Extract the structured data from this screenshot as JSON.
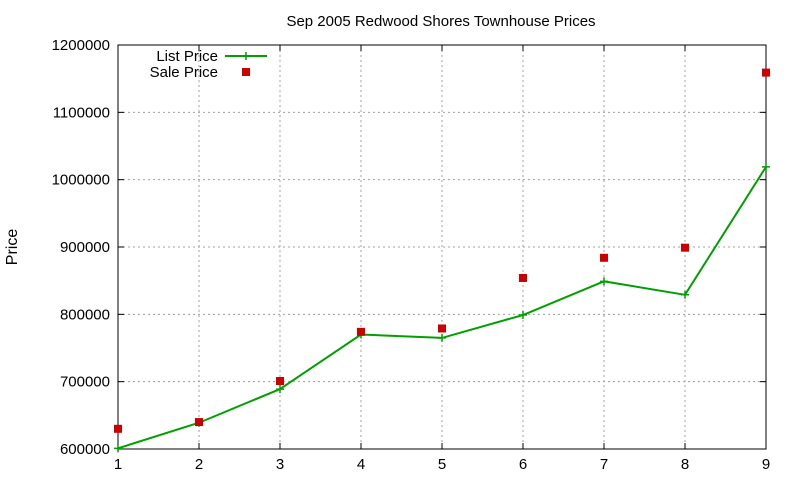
{
  "chart_data": {
    "type": "line",
    "title": "Sep 2005 Redwood Shores Townhouse Prices",
    "xlabel": "",
    "ylabel": "Price",
    "xlim": [
      1,
      9
    ],
    "ylim": [
      600000,
      1200000
    ],
    "x_ticks": [
      "1",
      "2",
      "3",
      "4",
      "5",
      "6",
      "7",
      "8",
      "9"
    ],
    "y_ticks": [
      "600000",
      "700000",
      "800000",
      "900000",
      "1000000",
      "1100000",
      "1200000"
    ],
    "grid": true,
    "legend_position": "top-left",
    "x": [
      1,
      2,
      3,
      4,
      5,
      6,
      7,
      8,
      9
    ],
    "series": [
      {
        "name": "List Price",
        "style": "line with + markers",
        "color": "#00a000",
        "values": [
          601000,
          639000,
          689000,
          770000,
          765000,
          799000,
          849000,
          829000,
          1019000
        ]
      },
      {
        "name": "Sale Price",
        "style": "square markers",
        "color": "#cc0000",
        "values": [
          630000,
          640000,
          701000,
          774000,
          779000,
          854000,
          884000,
          899000,
          1159000
        ]
      }
    ]
  }
}
